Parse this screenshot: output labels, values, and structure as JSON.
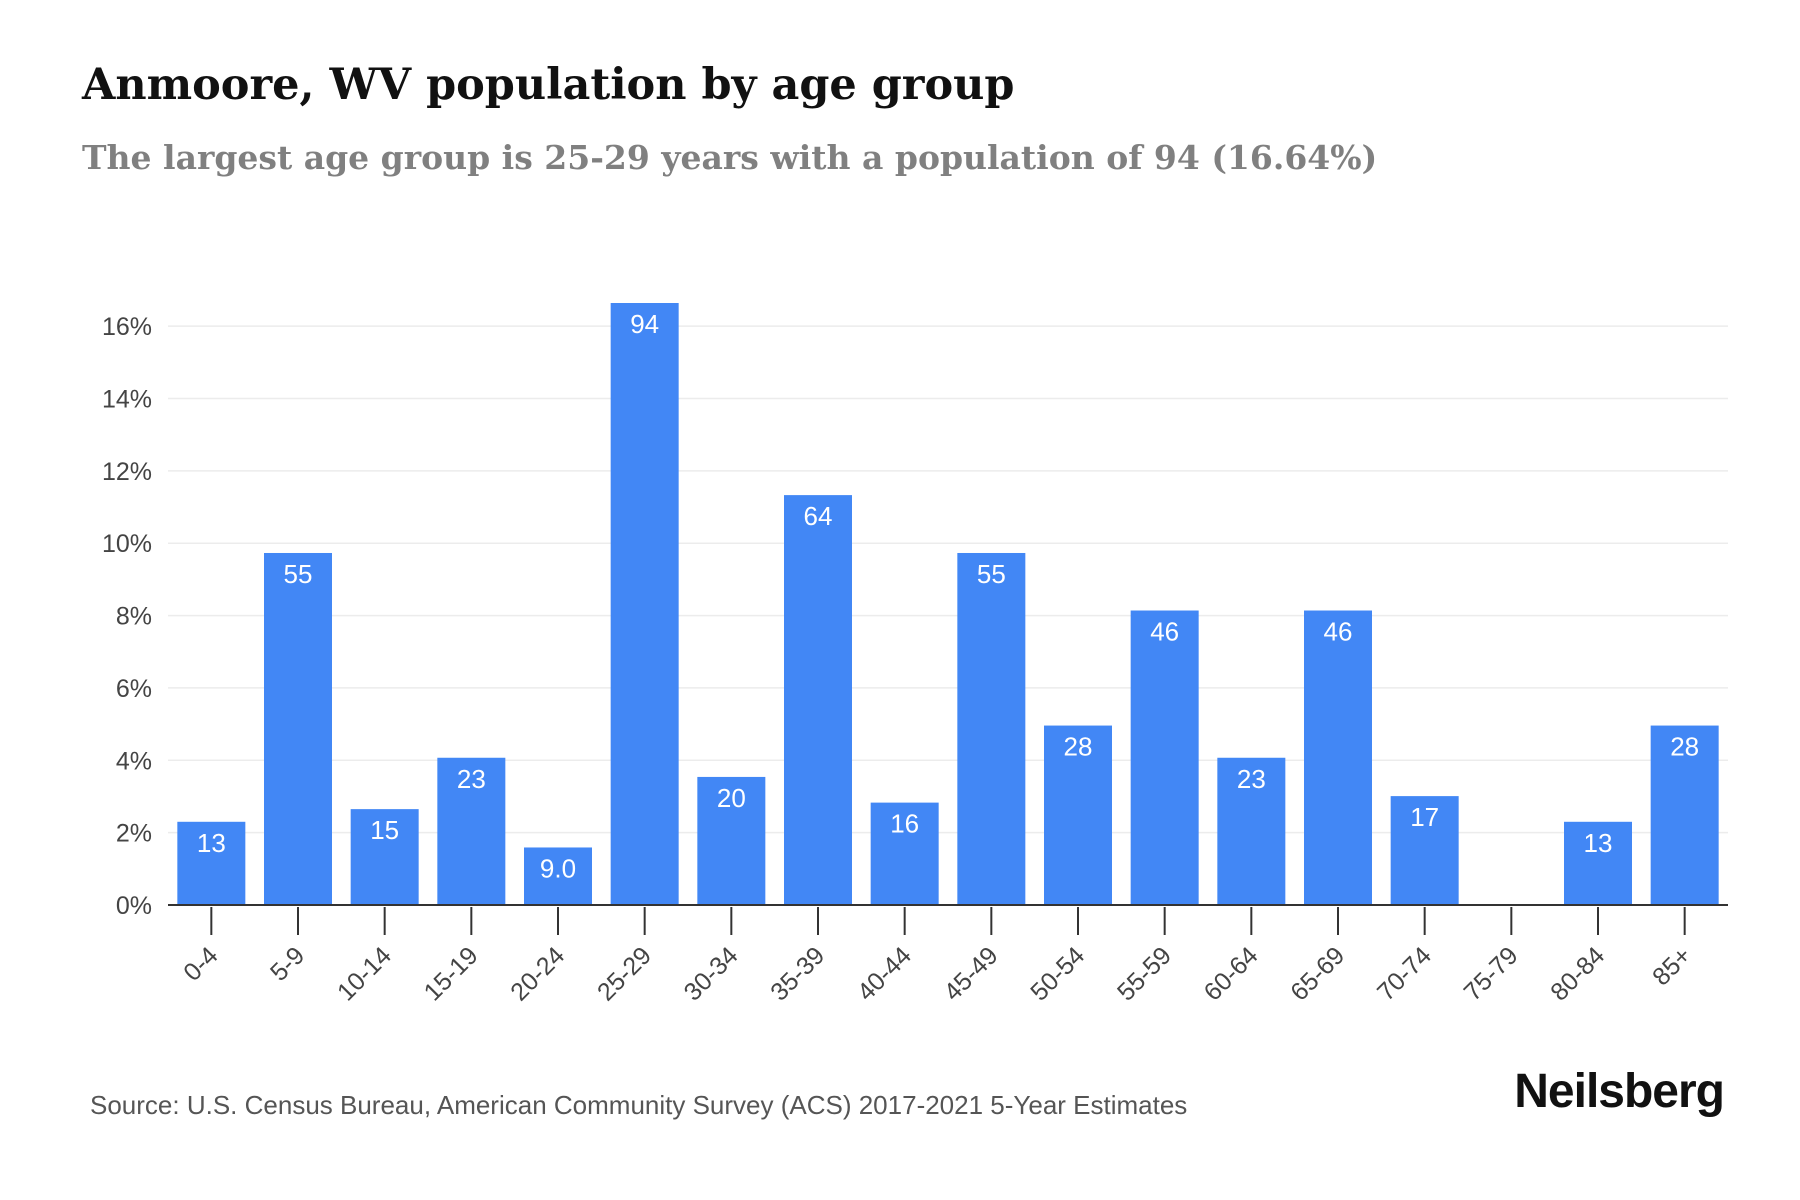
{
  "header": {
    "title": "Anmoore, WV population by age group",
    "subtitle": "The largest age group is 25-29 years with a population of 94 (16.64%)"
  },
  "footer": {
    "source": "Source: U.S. Census Bureau, American Community Survey (ACS) 2017-2021 5-Year Estimates",
    "brand": "Neilsberg"
  },
  "colors": {
    "bar": "#4287f5",
    "bar_label": "#ffffff",
    "grid": "#ececec",
    "axis": "#333333",
    "tick_text": "#444444"
  },
  "chart_data": {
    "type": "bar",
    "title": "Anmoore, WV population by age group",
    "subtitle": "The largest age group is 25-29 years with a population of 94 (16.64%)",
    "categories": [
      "0-4",
      "5-9",
      "10-14",
      "15-19",
      "20-24",
      "25-29",
      "30-34",
      "35-39",
      "40-44",
      "45-49",
      "50-54",
      "55-59",
      "60-64",
      "65-69",
      "70-74",
      "75-79",
      "80-84",
      "85+"
    ],
    "series": [
      {
        "percent": [
          2.3,
          9.73,
          2.65,
          4.07,
          1.59,
          16.64,
          3.54,
          11.33,
          2.83,
          9.73,
          4.96,
          8.14,
          4.07,
          8.14,
          3.01,
          0,
          2.3,
          4.96
        ],
        "population": [
          13,
          55,
          15,
          23,
          9.0,
          94,
          20,
          64,
          16,
          55,
          28,
          46,
          23,
          46,
          17,
          0,
          13,
          28
        ],
        "data_labels": [
          "13",
          "55",
          "15",
          "23",
          "9.0",
          "94",
          "20",
          "64",
          "16",
          "55",
          "28",
          "46",
          "23",
          "46",
          "17",
          "",
          "13",
          "28"
        ]
      }
    ],
    "y_ticks": [
      "0%",
      "2%",
      "4%",
      "6%",
      "8%",
      "10%",
      "12%",
      "14%",
      "16%"
    ],
    "ylim": [
      0,
      16.64
    ],
    "xlabel": "",
    "ylabel": "",
    "grid": true,
    "legend": "none"
  }
}
